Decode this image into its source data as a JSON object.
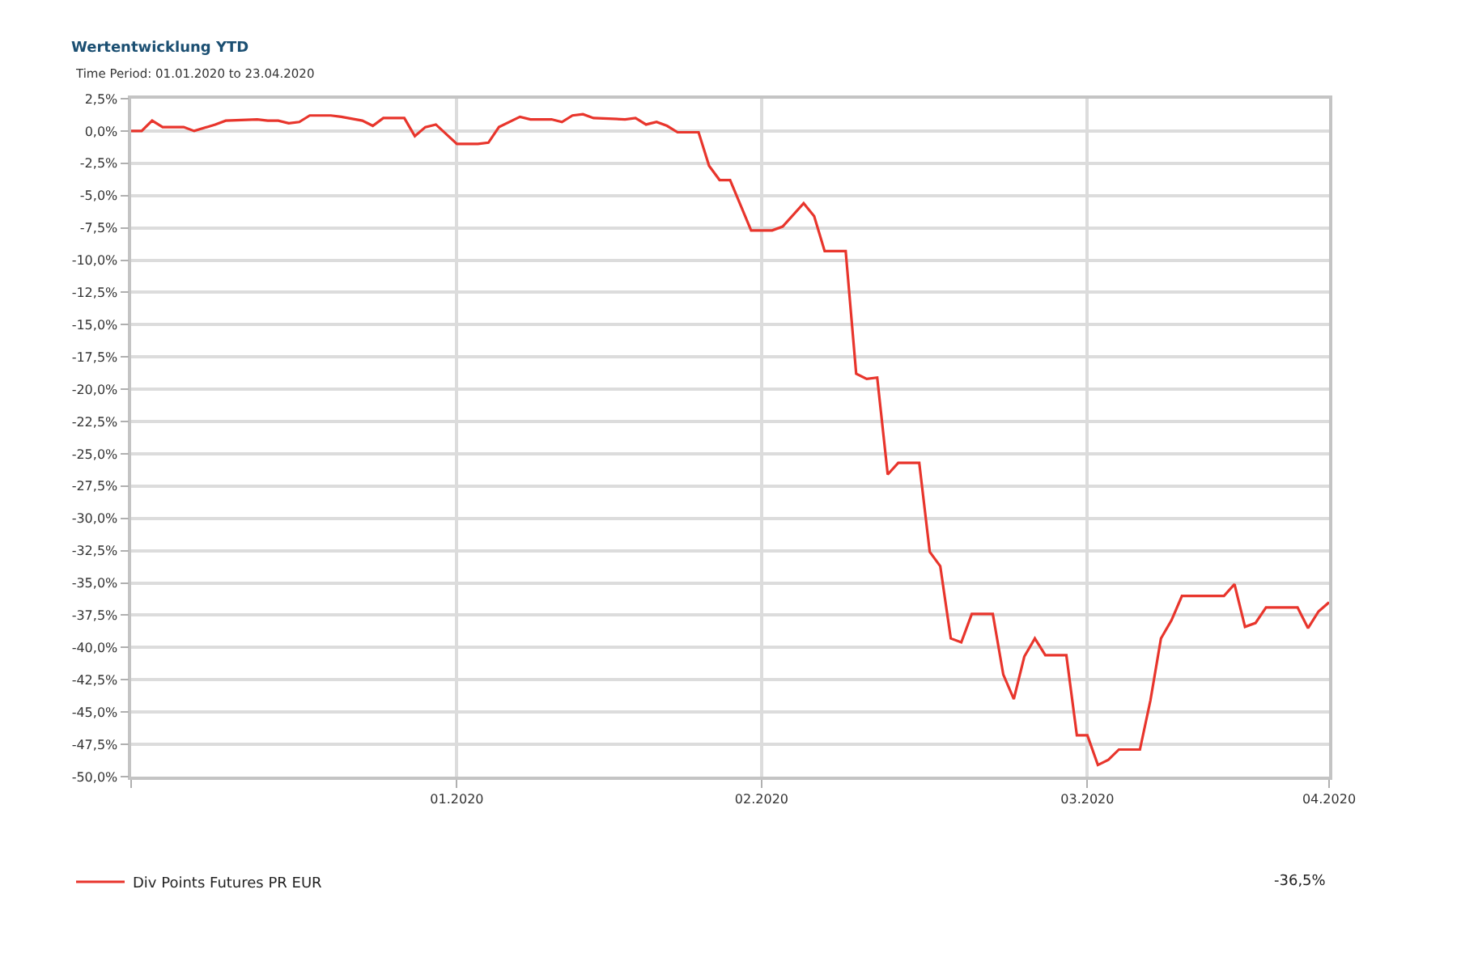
{
  "chart_data": {
    "type": "line",
    "title": "Wertentwicklung YTD",
    "subtitle": "Time Period: 01.01.2020 to 23.04.2020",
    "x": [
      "2019-12-31",
      "2020-01-01",
      "2020-01-02",
      "2020-01-03",
      "2020-01-05",
      "2020-01-06",
      "2020-01-08",
      "2020-01-09",
      "2020-01-12",
      "2020-01-13",
      "2020-01-14",
      "2020-01-15",
      "2020-01-16",
      "2020-01-17",
      "2020-01-19",
      "2020-01-20",
      "2020-01-22",
      "2020-01-23",
      "2020-01-24",
      "2020-01-26",
      "2020-01-27",
      "2020-01-28",
      "2020-01-29",
      "2020-01-31",
      "2020-02-02",
      "2020-02-03",
      "2020-02-04",
      "2020-02-06",
      "2020-02-07",
      "2020-02-09",
      "2020-02-10",
      "2020-02-11",
      "2020-02-12",
      "2020-02-13",
      "2020-02-16",
      "2020-02-17",
      "2020-02-18",
      "2020-02-19",
      "2020-02-20",
      "2020-02-21",
      "2020-02-23",
      "2020-02-24",
      "2020-02-25",
      "2020-02-26",
      "2020-02-28",
      "2020-03-01",
      "2020-03-02",
      "2020-03-04",
      "2020-03-05",
      "2020-03-06",
      "2020-03-08",
      "2020-03-09",
      "2020-03-10",
      "2020-03-11",
      "2020-03-12",
      "2020-03-13",
      "2020-03-15",
      "2020-03-16",
      "2020-03-17",
      "2020-03-18",
      "2020-03-19",
      "2020-03-20",
      "2020-03-22",
      "2020-03-23",
      "2020-03-24",
      "2020-03-25",
      "2020-03-26",
      "2020-03-27",
      "2020-03-29",
      "2020-03-30",
      "2020-03-31",
      "2020-04-01",
      "2020-04-02",
      "2020-04-03",
      "2020-04-05",
      "2020-04-06",
      "2020-04-07",
      "2020-04-08",
      "2020-04-09",
      "2020-04-13",
      "2020-04-14",
      "2020-04-15",
      "2020-04-16",
      "2020-04-17",
      "2020-04-20",
      "2020-04-21",
      "2020-04-22",
      "2020-04-23"
    ],
    "series": [
      {
        "name": "Div Points Futures PR EUR",
        "color": "#e8352c",
        "values": [
          0.0,
          0.0,
          0.8,
          0.3,
          0.3,
          0.0,
          0.5,
          0.8,
          0.9,
          0.8,
          0.8,
          0.6,
          0.7,
          1.2,
          1.2,
          1.1,
          0.8,
          0.4,
          1.0,
          1.0,
          -0.4,
          0.3,
          0.5,
          -1.0,
          -1.0,
          -0.9,
          0.3,
          1.1,
          0.9,
          0.9,
          0.7,
          1.2,
          1.3,
          1.0,
          0.9,
          1.0,
          0.5,
          0.7,
          0.4,
          -0.1,
          -0.1,
          -2.7,
          -3.8,
          -3.8,
          -7.7,
          -7.7,
          -7.4,
          -5.6,
          -6.6,
          -9.3,
          -9.3,
          -18.8,
          -19.2,
          -19.1,
          -26.6,
          -25.7,
          -25.7,
          -32.6,
          -33.7,
          -39.3,
          -39.6,
          -37.4,
          -37.4,
          -42.1,
          -44.0,
          -40.7,
          -39.3,
          -40.6,
          -40.6,
          -46.8,
          -46.8,
          -49.1,
          -48.7,
          -47.9,
          -47.9,
          -44.1,
          -39.3,
          -37.9,
          -36.0,
          -36.0,
          -35.1,
          -38.4,
          -38.1,
          -36.9,
          -36.9,
          -38.5,
          -37.2,
          -36.5
        ]
      }
    ],
    "xlim": [
      "2019-12-31",
      "2020-04-23"
    ],
    "xticks": [
      {
        "value": "2019-12-31",
        "label": null
      },
      {
        "value": "2020-01-31",
        "label": "01.2020"
      },
      {
        "value": "2020-02-29",
        "label": "02.2020"
      },
      {
        "value": "2020-03-31",
        "label": "03.2020"
      },
      {
        "value": "2020-04-23",
        "label": "04.2020"
      }
    ],
    "ylim": [
      -50,
      2.5
    ],
    "yticks": [
      {
        "value": 2.5,
        "label": "2,5%"
      },
      {
        "value": 0,
        "label": "0,0%"
      },
      {
        "value": -2.5,
        "label": "-2,5%"
      },
      {
        "value": -5,
        "label": "-5,0%"
      },
      {
        "value": -7.5,
        "label": "-7,5%"
      },
      {
        "value": -10,
        "label": "-10,0%"
      },
      {
        "value": -12.5,
        "label": "-12,5%"
      },
      {
        "value": -15,
        "label": "-15,0%"
      },
      {
        "value": -17.5,
        "label": "-17,5%"
      },
      {
        "value": -20,
        "label": "-20,0%"
      },
      {
        "value": -22.5,
        "label": "-22,5%"
      },
      {
        "value": -25,
        "label": "-25,0%"
      },
      {
        "value": -27.5,
        "label": "-27,5%"
      },
      {
        "value": -30,
        "label": "-30,0%"
      },
      {
        "value": -32.5,
        "label": "-32,5%"
      },
      {
        "value": -35,
        "label": "-35,0%"
      },
      {
        "value": -37.5,
        "label": "-37,5%"
      },
      {
        "value": -40,
        "label": "-40,0%"
      },
      {
        "value": -42.5,
        "label": "-42,5%"
      },
      {
        "value": -45,
        "label": "-45,0%"
      },
      {
        "value": -47.5,
        "label": "-47,5%"
      },
      {
        "value": -50,
        "label": "-50,0%"
      }
    ],
    "grid": true,
    "legend": "bottom left",
    "line_style": "solid",
    "annotations": [
      "-36,5%"
    ]
  }
}
